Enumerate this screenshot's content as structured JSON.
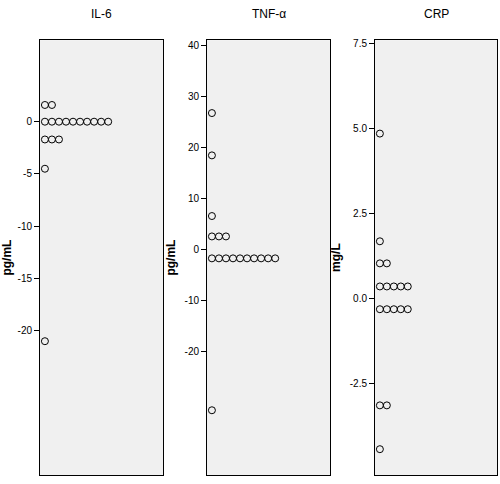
{
  "chart_data": [
    {
      "type": "dot",
      "title": "IL-6",
      "y_label": "pg/mL",
      "color": "#000000",
      "marker": "open circle",
      "values": [
        1.6,
        1.6,
        0,
        0,
        0,
        0,
        0,
        0,
        0,
        0,
        0,
        0,
        -1.7,
        -1.7,
        -1.7,
        -4.5,
        -21
      ],
      "ylim": [
        -33.8,
        7.8
      ],
      "yticks": [
        -20,
        -15,
        -10,
        -5,
        0
      ]
    },
    {
      "type": "dot",
      "title": "TNF-α",
      "y_label": "pg/mL",
      "color": "#000000",
      "marker": "open circle",
      "values": [
        26.7,
        18.4,
        6.5,
        2.5,
        2.5,
        2.5,
        -1.8,
        -1.8,
        -1.8,
        -1.8,
        -1.8,
        -1.8,
        -1.8,
        -1.8,
        -1.8,
        -1.8,
        -31.6
      ],
      "ylim": [
        -44.3,
        41
      ],
      "yticks": [
        -20,
        -10,
        0,
        10,
        20,
        30,
        40
      ]
    },
    {
      "type": "dot",
      "title": "CRP",
      "y_label": "mg/L",
      "color": "#000000",
      "marker": "open circle",
      "values": [
        4.85,
        1.68,
        1.03,
        1.03,
        0.35,
        0.35,
        0.35,
        0.35,
        0.35,
        -0.32,
        -0.32,
        -0.32,
        -0.32,
        -0.32,
        -3.15,
        -3.15,
        -4.44
      ],
      "ylim": [
        -5.2,
        7.6
      ],
      "yticks": [
        {
          "value": -2.5,
          "label": "-2.5"
        },
        {
          "value": 0,
          "label": "0.0"
        },
        {
          "value": 2.5,
          "label": "2.5"
        },
        {
          "value": 5,
          "label": "5.0"
        },
        {
          "value": 7.5,
          "label": "7.5"
        }
      ]
    }
  ]
}
